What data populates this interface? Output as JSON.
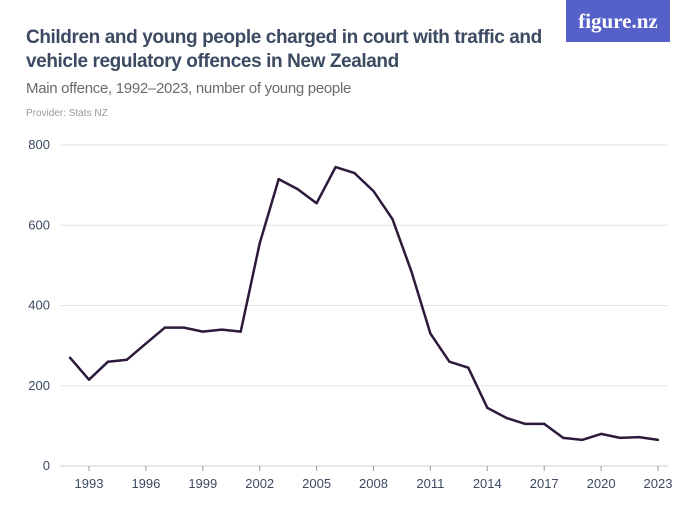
{
  "header": {
    "title": "Children and young people charged in court with traffic and vehicle regulatory offences in New Zealand",
    "subtitle": "Main offence, 1992–2023, number of young people",
    "provider": "Provider: Stats NZ",
    "logo": "figure.nz"
  },
  "colors": {
    "line": "#2d1a3a",
    "grid": "#e2e2e2",
    "logo_bg": "#5560c8"
  },
  "chart_data": {
    "type": "line",
    "title": "Children and young people charged in court with traffic and vehicle regulatory offences in New Zealand",
    "subtitle": "Main offence, 1992–2023, number of young people",
    "ylim": [
      0,
      800
    ],
    "grid": true,
    "y_ticks": [
      "0",
      "200",
      "400",
      "600",
      "800"
    ],
    "x_ticks": [
      "1993",
      "1996",
      "1999",
      "2002",
      "2005",
      "2008",
      "2011",
      "2014",
      "2017",
      "2020",
      "2023"
    ],
    "x": [
      1992,
      1993,
      1994,
      1995,
      1996,
      1997,
      1998,
      1999,
      2000,
      2001,
      2002,
      2003,
      2004,
      2005,
      2006,
      2007,
      2008,
      2009,
      2010,
      2011,
      2012,
      2013,
      2014,
      2015,
      2016,
      2017,
      2018,
      2019,
      2020,
      2021,
      2022,
      2023
    ],
    "values": [
      270,
      215,
      260,
      265,
      305,
      345,
      345,
      335,
      340,
      335,
      555,
      715,
      690,
      655,
      745,
      730,
      685,
      615,
      485,
      330,
      260,
      245,
      145,
      120,
      105,
      105,
      70,
      65,
      80,
      70,
      72,
      65
    ]
  }
}
